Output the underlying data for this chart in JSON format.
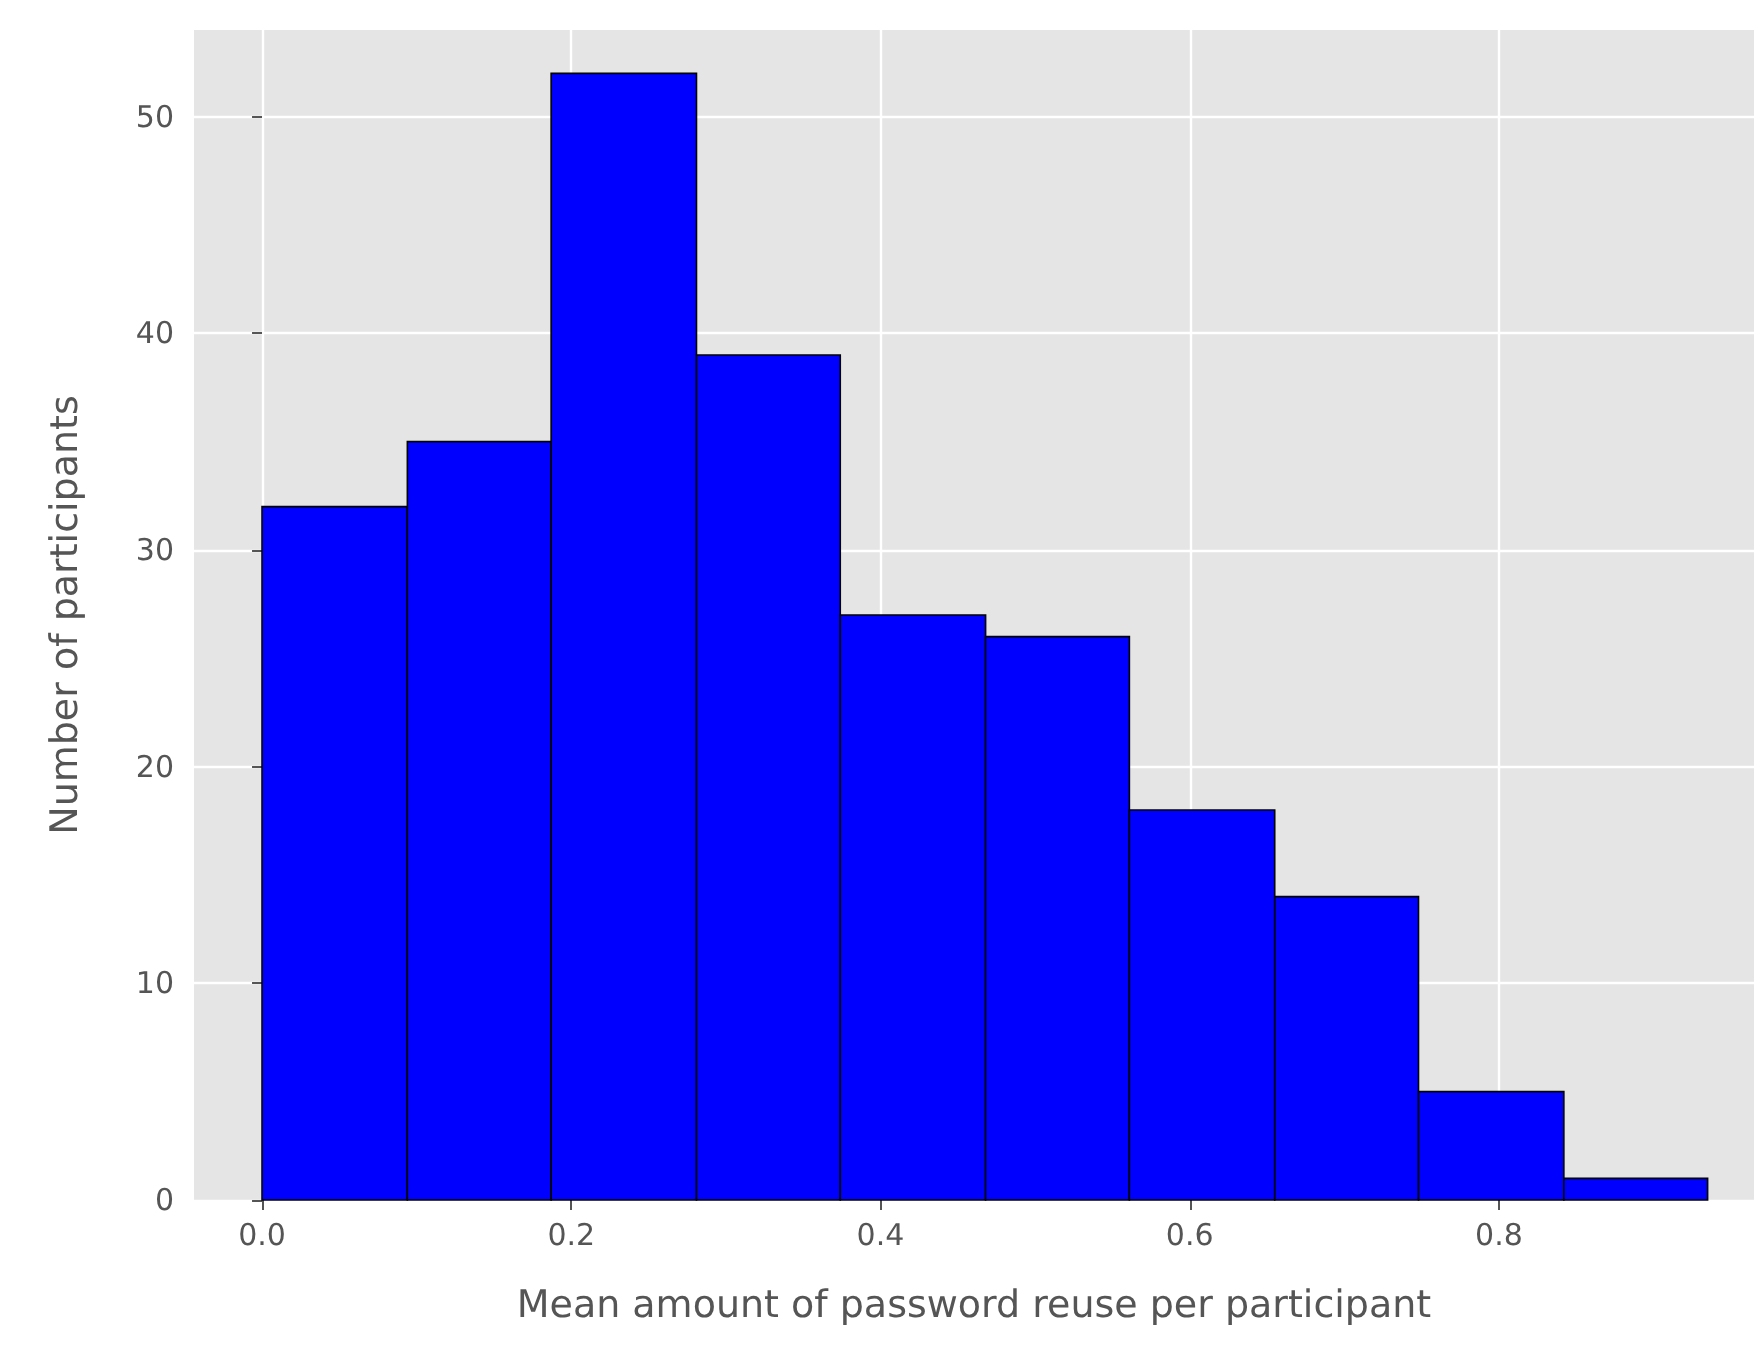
{
  "chart_data": {
    "type": "histogram",
    "xlabel": "Mean amount of password reuse per participant",
    "ylabel": "Number of participants",
    "bins": [
      0,
      0.094,
      0.187,
      0.281,
      0.374,
      0.468,
      0.561,
      0.655,
      0.748,
      0.842,
      0.935
    ],
    "values": [
      32,
      35,
      52,
      39,
      27,
      26,
      18,
      14,
      5,
      1
    ],
    "color": "#0000ff",
    "xlim": [
      -0.044,
      0.965
    ],
    "xticks": [
      {
        "value": 0,
        "label": "0.0"
      },
      0.2,
      0.4,
      0.6,
      0.8
    ],
    "ylim": [
      0,
      54
    ],
    "yticks": [
      0,
      10,
      20,
      30,
      40,
      50
    ],
    "grid": true
  }
}
